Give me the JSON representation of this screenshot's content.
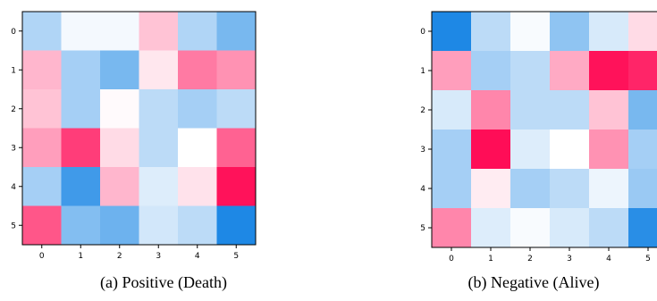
{
  "chart_data": [
    {
      "type": "heatmap",
      "caption": "(a) Positive (Death)",
      "x_ticks": [
        "0",
        "1",
        "2",
        "3",
        "4",
        "5"
      ],
      "y_ticks": [
        "0",
        "1",
        "2",
        "3",
        "4",
        "5"
      ],
      "colormap": {
        "negative": "#1e88e5",
        "zero": "#ffffff",
        "positive": "#ff0d57"
      },
      "values": [
        [
          -0.35,
          -0.05,
          -0.05,
          0.25,
          -0.35,
          -0.6
        ],
        [
          0.3,
          -0.4,
          -0.6,
          0.1,
          0.55,
          0.45
        ],
        [
          0.25,
          -0.4,
          0.02,
          -0.3,
          -0.4,
          -0.3
        ],
        [
          0.4,
          0.8,
          0.15,
          -0.3,
          0.0,
          0.65
        ],
        [
          -0.4,
          -0.85,
          0.3,
          -0.15,
          0.12,
          0.98
        ],
        [
          0.7,
          -0.55,
          -0.65,
          -0.2,
          -0.3,
          -1.0
        ]
      ]
    },
    {
      "type": "heatmap",
      "caption": "(b) Negative (Alive)",
      "x_ticks": [
        "0",
        "1",
        "2",
        "3",
        "4",
        "5"
      ],
      "y_ticks": [
        "0",
        "1",
        "2",
        "3",
        "4",
        "5"
      ],
      "colormap": {
        "negative": "#1e88e5",
        "zero": "#ffffff",
        "positive": "#ff0d57"
      },
      "values": [
        [
          -1.0,
          -0.3,
          -0.03,
          -0.5,
          -0.18,
          0.15
        ],
        [
          0.4,
          -0.4,
          -0.3,
          0.35,
          0.98,
          0.9
        ],
        [
          -0.18,
          0.5,
          -0.3,
          -0.3,
          0.25,
          -0.6
        ],
        [
          -0.4,
          1.0,
          -0.15,
          0.0,
          0.45,
          -0.4
        ],
        [
          -0.4,
          0.08,
          -0.4,
          -0.3,
          -0.08,
          -0.45
        ],
        [
          0.5,
          -0.15,
          -0.03,
          -0.18,
          -0.3,
          -0.95
        ]
      ]
    }
  ]
}
